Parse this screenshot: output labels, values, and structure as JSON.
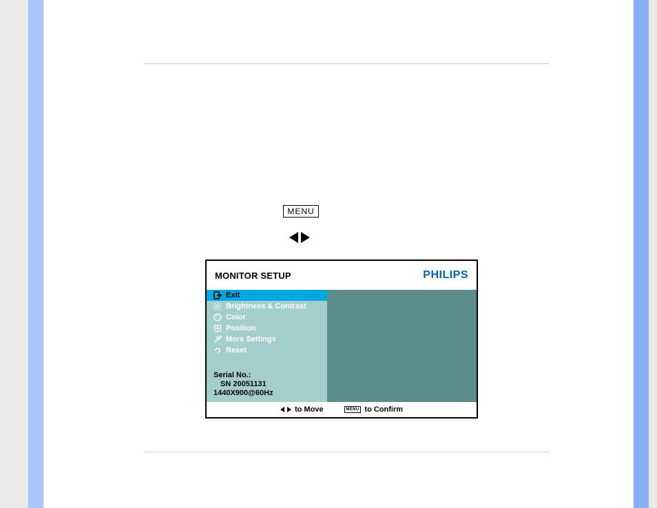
{
  "colors": {
    "page_bg": "#e9e9e9",
    "panel_bg": "#ffffff",
    "stripe_left": "#a9c4f5",
    "stripe_right": "#89adf1",
    "rule": "#cccccc",
    "brand": "#0066b3",
    "osd_left_bg": "#a4cdce",
    "osd_right_bg": "#5b8d8c",
    "osd_selected_bg": "#00a7e0",
    "menu_item_text": "#ffffff",
    "black": "#000000"
  },
  "buttons": {
    "menu_label": "MENU"
  },
  "osd": {
    "title": "MONITOR SETUP",
    "brand": "PHILIPS",
    "items": [
      {
        "label": "Exit",
        "icon": "exit",
        "selected": true
      },
      {
        "label": "Brightness & Contrast",
        "icon": "sun",
        "selected": false
      },
      {
        "label": "Color",
        "icon": "palette",
        "selected": false
      },
      {
        "label": "Position",
        "icon": "position",
        "selected": false
      },
      {
        "label": "More Settings",
        "icon": "tools",
        "selected": false
      },
      {
        "label": "Reset",
        "icon": "reset",
        "selected": false
      }
    ],
    "serial_label": "Serial No.:",
    "serial_value": "SN 20051131",
    "resolution": "1440X900@60Hz",
    "footer": {
      "move_label": "to Move",
      "confirm_label": "to Confirm",
      "confirm_tag": "MENU"
    }
  }
}
